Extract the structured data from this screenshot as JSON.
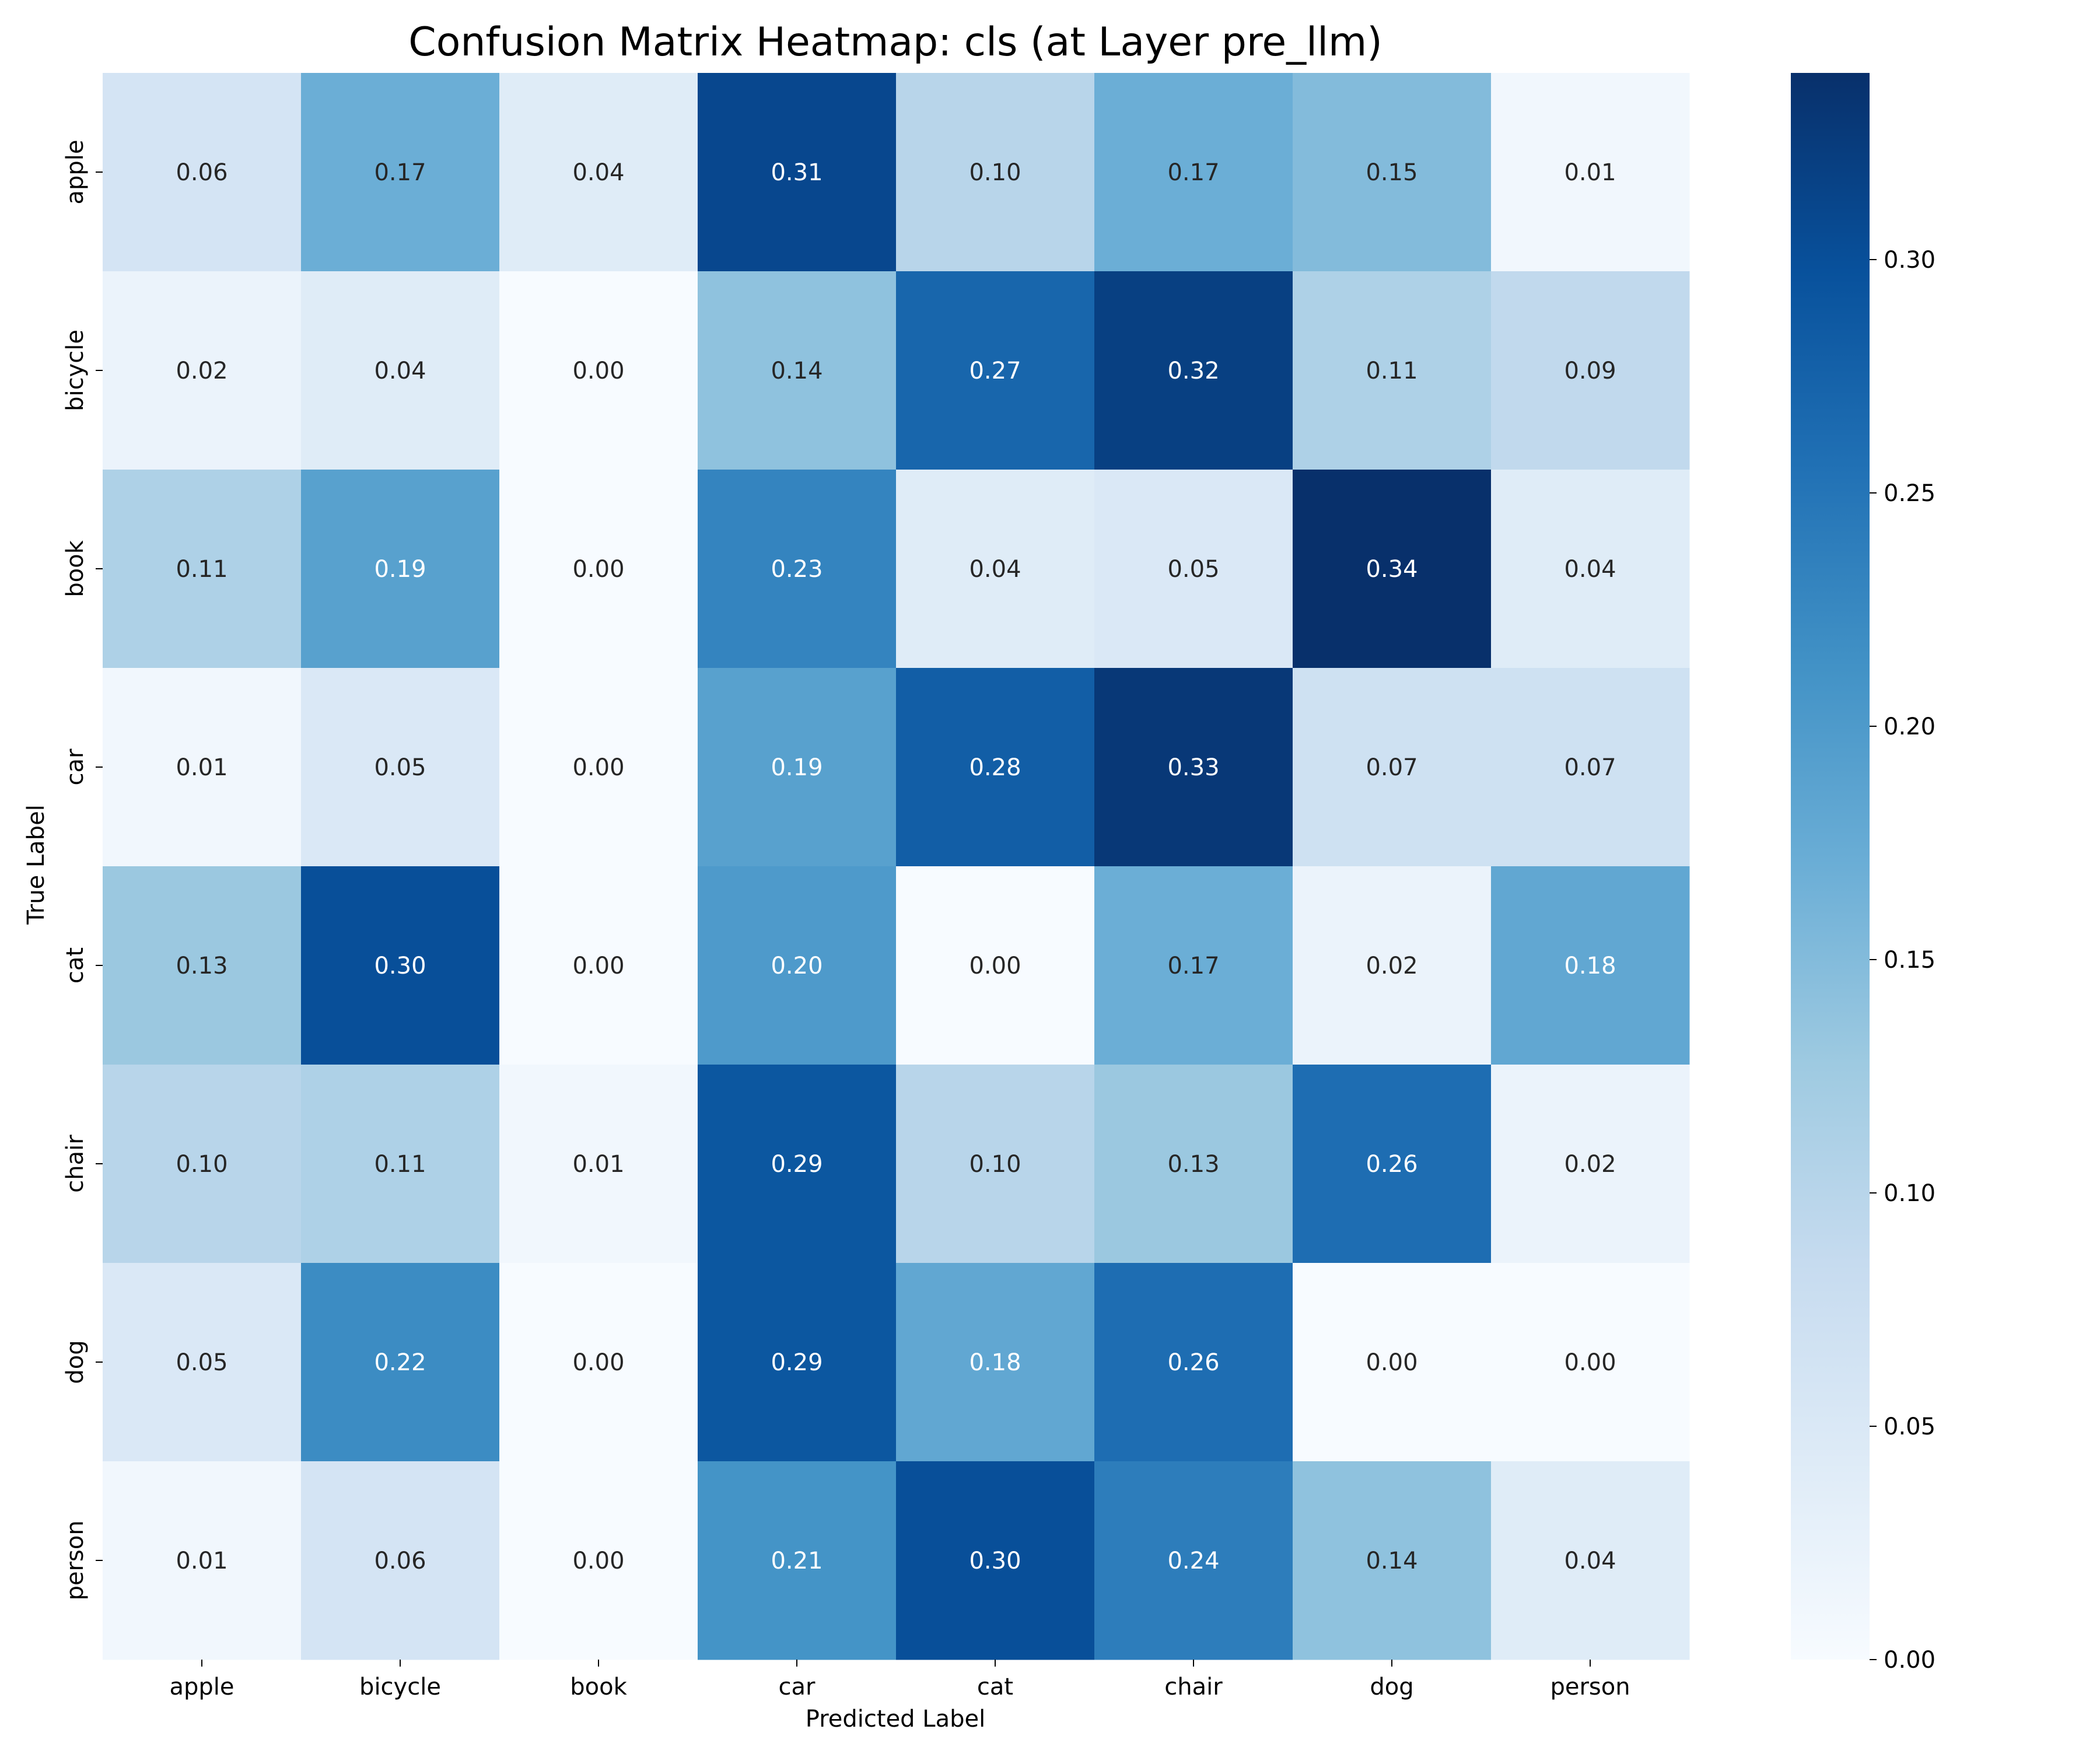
{
  "chart_data": {
    "type": "heatmap",
    "title": "Confusion Matrix Heatmap: cls (at Layer pre_llm)",
    "xlabel": "Predicted Label",
    "ylabel": "True Label",
    "x_categories": [
      "apple",
      "bicycle",
      "book",
      "car",
      "cat",
      "chair",
      "dog",
      "person"
    ],
    "y_categories": [
      "apple",
      "bicycle",
      "book",
      "car",
      "cat",
      "chair",
      "dog",
      "person"
    ],
    "values": [
      [
        0.06,
        0.17,
        0.04,
        0.31,
        0.1,
        0.17,
        0.15,
        0.01
      ],
      [
        0.02,
        0.04,
        0.0,
        0.14,
        0.27,
        0.32,
        0.11,
        0.09
      ],
      [
        0.11,
        0.19,
        0.0,
        0.23,
        0.04,
        0.05,
        0.34,
        0.04
      ],
      [
        0.01,
        0.05,
        0.0,
        0.19,
        0.28,
        0.33,
        0.07,
        0.07
      ],
      [
        0.13,
        0.3,
        0.0,
        0.2,
        0.0,
        0.17,
        0.02,
        0.18
      ],
      [
        0.1,
        0.11,
        0.01,
        0.29,
        0.1,
        0.13,
        0.26,
        0.02
      ],
      [
        0.05,
        0.22,
        0.0,
        0.29,
        0.18,
        0.26,
        0.0,
        0.0
      ],
      [
        0.01,
        0.06,
        0.0,
        0.21,
        0.3,
        0.24,
        0.14,
        0.04
      ]
    ],
    "value_format": "0.00",
    "colormap": "Blues",
    "color_range": [
      0,
      0.34
    ],
    "colorbar": {
      "ticks": [
        0.0,
        0.05,
        0.1,
        0.15,
        0.2,
        0.25,
        0.3
      ],
      "tick_labels": [
        "0.00",
        "0.05",
        "0.10",
        "0.15",
        "0.20",
        "0.25",
        "0.30"
      ]
    },
    "grid": false
  }
}
